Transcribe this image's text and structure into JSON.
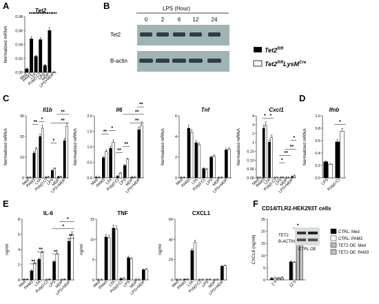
{
  "panel_letters": [
    "A",
    "B",
    "C",
    "D",
    "E",
    "F"
  ],
  "legend_main": {
    "wt": "Tet2",
    "wt_sup": "fl/fl",
    "ko": "Tet2",
    "ko_sup": "fl/fl",
    "ko_sup2": "LysM",
    "ko_sup3": "Cre"
  },
  "western": {
    "header": "LPS (Hour)",
    "times": [
      "0",
      "2",
      "6",
      "12",
      "24"
    ],
    "rows": [
      "Tet2",
      "B-actin"
    ]
  },
  "panel_f": {
    "title": "CD14/TLR2-HEK293T cells",
    "inset_labels": [
      "TET2",
      "B-ACTIN",
      "CTRL OE"
    ],
    "legend": [
      "CTRL: Med",
      "CTRL: PAM3",
      "TET2 OE: Med",
      "TET2 OE: PAM3"
    ]
  },
  "chart_data": [
    {
      "panel": "A",
      "type": "bar",
      "title": "Tet2",
      "ylabel": "Normalized mRNA",
      "ylim": [
        0,
        0.08
      ],
      "yticks": [
        "0.00",
        "0.02",
        "0.04",
        "0.06",
        "0.08"
      ],
      "categories": [
        "Med",
        "PAM3",
        "LTA",
        "Poly(I:C)",
        "LPS",
        "MDP",
        "LPS+MDP"
      ],
      "values": [
        0.005,
        0.048,
        0.023,
        0.047,
        0.01,
        0.06,
        0.0
      ],
      "stars": [
        "",
        "***",
        "***",
        "***",
        "***",
        "***",
        "***"
      ]
    },
    {
      "panel": "C",
      "type": "bar",
      "title": "Il1b",
      "ylabel": "Normalized mRNA",
      "ylim": [
        0,
        30
      ],
      "yticks": [
        "0",
        "10",
        "20",
        "30"
      ],
      "categories": [
        "Med",
        "PAM3",
        "LTA",
        "Poly(I:C)",
        "LPS",
        "MDP",
        "LPS+MDP"
      ],
      "series": [
        {
          "name": "Tet2fl/fl",
          "values": [
            0.1,
            12,
            20,
            0.3,
            3.5,
            0.5,
            18
          ]
        },
        {
          "name": "Tet2fl/flLysMCre",
          "values": [
            0.1,
            14,
            24,
            0.4,
            4.5,
            0.5,
            25
          ]
        }
      ],
      "stars": [
        "**",
        "*",
        "*",
        "**",
        "**"
      ]
    },
    {
      "panel": "C",
      "type": "bar",
      "title": "Il6",
      "ylabel": "Normalized mRNA",
      "ylim": [
        0,
        2
      ],
      "yticks": [
        "0.0",
        "0.5",
        "1.0",
        "1.5",
        "2.0"
      ],
      "categories": [
        "Med",
        "PAM3",
        "LTA",
        "Poly(I:C)",
        "LPS",
        "MDP",
        "LPS+MDP"
      ],
      "series": [
        {
          "name": "Tet2fl/fl",
          "values": [
            0.02,
            0.65,
            0.95,
            0.05,
            0.4,
            0.02,
            1.55
          ]
        },
        {
          "name": "Tet2fl/flLysMCre",
          "values": [
            0.02,
            0.85,
            1.15,
            0.15,
            0.6,
            0.02,
            1.7
          ]
        }
      ],
      "stars": [
        "**",
        "*",
        "**",
        "**",
        "**",
        "**",
        "**"
      ]
    },
    {
      "panel": "C",
      "type": "bar",
      "title": "Tnf",
      "ylabel": "Normalized mRNA",
      "ylim": [
        0,
        6
      ],
      "yticks": [
        "0",
        "2",
        "4",
        "6"
      ],
      "categories": [
        "Med",
        "PAM3",
        "LTA",
        "Poly(I:C)",
        "LPS",
        "MDP",
        "LPS+MDP"
      ],
      "series": [
        {
          "name": "Tet2fl/fl",
          "values": [
            0.02,
            4.8,
            3.4,
            0.9,
            2.0,
            0.02,
            2.7
          ]
        },
        {
          "name": "Tet2fl/flLysMCre",
          "values": [
            0.02,
            4.4,
            3.2,
            0.85,
            2.1,
            0.02,
            2.75
          ]
        }
      ],
      "stars": []
    },
    {
      "panel": "C",
      "type": "bar",
      "title": "Cxcl1",
      "ylabel": "Normalized mRNA",
      "ylim": [
        0,
        4
      ],
      "yticks": [
        "0.00",
        "0.05",
        "0.10",
        "0.15",
        "1",
        "2",
        "3",
        "4"
      ],
      "categories": [
        "Med",
        "PAM3",
        "LTA",
        "Poly(I:C)",
        "LPS",
        "MDP",
        "LPS+MDP"
      ],
      "series": [
        {
          "name": "Tet2fl/fl",
          "values": [
            0.005,
            3.2,
            2.3,
            0.01,
            0.015,
            0.005,
            0.08
          ]
        },
        {
          "name": "Tet2fl/flLysMCre",
          "values": [
            0.005,
            3.4,
            2.6,
            0.01,
            0.03,
            0.005,
            0.13
          ]
        }
      ],
      "stars": [
        "*",
        "*",
        "*",
        "**",
        "**",
        "*"
      ]
    },
    {
      "panel": "D",
      "type": "bar",
      "title": "Ifnb",
      "ylabel": "Normalized mRNA",
      "ylim": [
        0,
        1
      ],
      "yticks": [
        "0.0",
        "0.2",
        "0.4",
        "0.6",
        "0.8",
        "1.0"
      ],
      "categories": [
        "LPS",
        "Poly(I:C)"
      ],
      "series": [
        {
          "name": "Tet2fl/fl",
          "values": [
            0.26,
            0.58
          ]
        },
        {
          "name": "Tet2fl/flLysMCre",
          "values": [
            0.22,
            0.75
          ]
        }
      ],
      "stars": [
        "*"
      ]
    },
    {
      "panel": "E",
      "type": "bar",
      "title": "IL-6",
      "ylabel": "ng/ml",
      "ylim": [
        0,
        8
      ],
      "yticks": [
        "0",
        "2",
        "4",
        "6",
        "8"
      ],
      "categories": [
        "Med",
        "PAM3",
        "LTA",
        "Poly(I:C)",
        "LPS",
        "MDP",
        "LPS+MDP"
      ],
      "series": [
        {
          "name": "Tet2fl/fl",
          "values": [
            0.05,
            1.2,
            2.7,
            0.02,
            2.4,
            0.02,
            5.1
          ]
        },
        {
          "name": "Tet2fl/flLysMCre",
          "values": [
            0.05,
            2.2,
            3.6,
            0.05,
            3.4,
            0.05,
            6.0
          ]
        }
      ],
      "stars": [
        "**",
        "**",
        "**",
        "*",
        "*",
        "**"
      ]
    },
    {
      "panel": "E",
      "type": "bar",
      "title": "TNF",
      "ylabel": "ng/ml",
      "ylim": [
        0,
        15
      ],
      "yticks": [
        "0",
        "5",
        "10",
        "15"
      ],
      "categories": [
        "Med",
        "PAM3",
        "LTA",
        "Poly(I:C)",
        "LPS",
        "MDP",
        "LPS+MDP"
      ],
      "series": [
        {
          "name": "Tet2fl/fl",
          "values": [
            0.02,
            10.6,
            12.8,
            0.3,
            5.5,
            0.02,
            2.5
          ]
        },
        {
          "name": "Tet2fl/flLysMCre",
          "values": [
            0.02,
            10.4,
            12.6,
            0.35,
            5.2,
            0.02,
            2.6
          ]
        }
      ],
      "stars": []
    },
    {
      "panel": "E",
      "type": "bar",
      "title": "CXCL1",
      "ylabel": "ng/ml",
      "ylim": [
        0,
        60
      ],
      "yticks": [
        "0",
        "20",
        "40",
        "60"
      ],
      "categories": [
        "Med",
        "PAM3",
        "LTA",
        "Poly(I:C)",
        "LPS",
        "MDP",
        "LPS+MDP"
      ],
      "series": [
        {
          "name": "Tet2fl/fl",
          "values": [
            0.1,
            0.5,
            29,
            0.1,
            0.2,
            0.1,
            13.5
          ]
        },
        {
          "name": "Tet2fl/flLysMCre",
          "values": [
            0.1,
            0.6,
            37,
            0.1,
            0.2,
            0.1,
            14
          ]
        }
      ],
      "stars": []
    },
    {
      "panel": "F",
      "type": "bar",
      "title": "",
      "ylabel": "CXCL8 (ng/ml)",
      "ylim": [
        0,
        25
      ],
      "yticks": [
        "0",
        "5",
        "10",
        "15",
        "20",
        "25"
      ],
      "categories": [
        "2 h",
        "12 h"
      ],
      "series": [
        {
          "name": "CTRL: Med",
          "values": [
            0.6,
            7.4
          ]
        },
        {
          "name": "CTRL: PAM3",
          "values": [
            0.8,
            7.2
          ]
        },
        {
          "name": "TET2 OE: Med",
          "values": [
            0.7,
            17.5
          ]
        },
        {
          "name": "TET2 OE: PAM3",
          "values": [
            0.9,
            15.2
          ]
        }
      ],
      "stars": [
        "*"
      ]
    }
  ]
}
